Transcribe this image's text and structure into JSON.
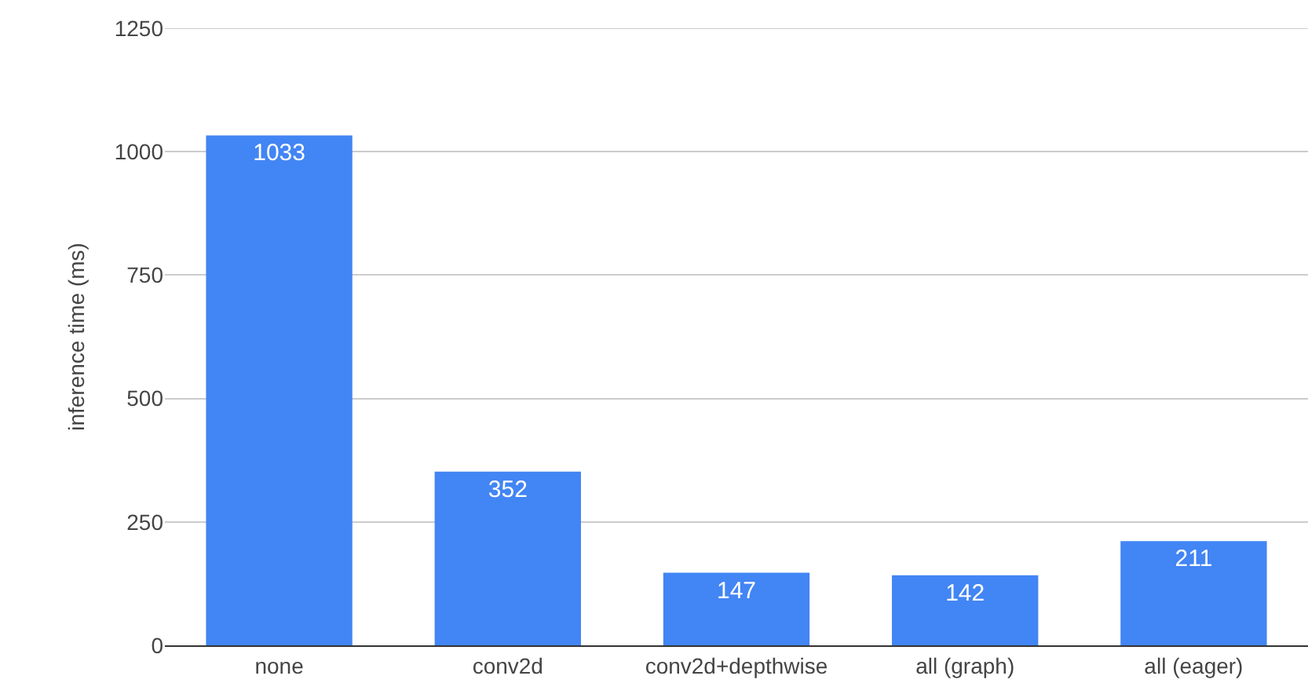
{
  "chart_data": {
    "type": "bar",
    "ylabel": "inference time (ms)",
    "categories": [
      "none",
      "conv2d",
      "conv2d+depthwise",
      "all (graph)",
      "all (eager)"
    ],
    "values": [
      1033,
      352,
      147,
      142,
      211
    ],
    "color": "#4285f4",
    "ylim": [
      0,
      1250
    ],
    "yticks": [
      0,
      250,
      500,
      750,
      1000,
      1250
    ],
    "grid": "y",
    "data_labels": true
  }
}
